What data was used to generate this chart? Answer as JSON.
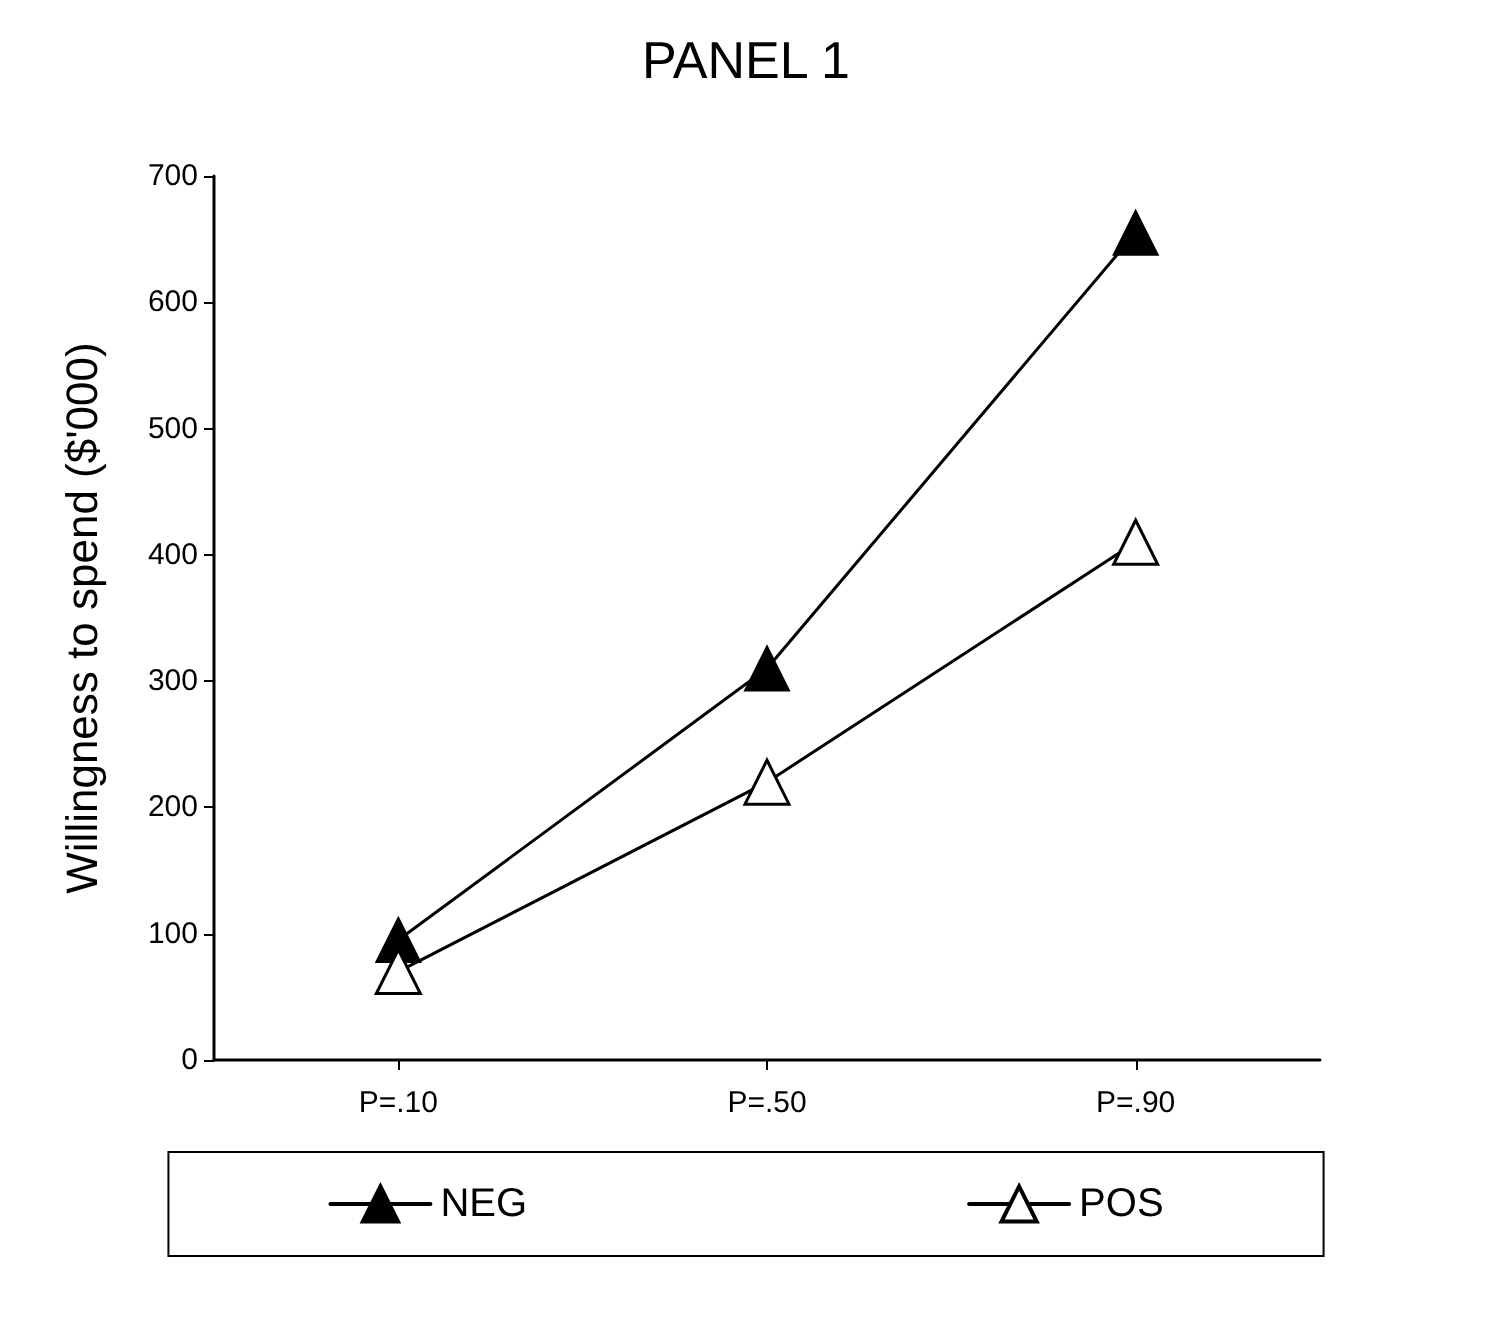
{
  "chart_data": {
    "type": "line",
    "title": "PANEL 1",
    "ylabel": "Willingness to spend ($'000)",
    "categories": [
      "P=.10",
      "P=.50",
      "P=.90"
    ],
    "series": [
      {
        "name": "NEG",
        "color": "#000000",
        "values": [
          95,
          310,
          655
        ]
      },
      {
        "name": "POS",
        "color": "#000000",
        "values": [
          70,
          220,
          410
        ]
      }
    ],
    "ylim": [
      0,
      700
    ],
    "yticks": [
      0,
      100,
      200,
      300,
      400,
      500,
      600,
      700
    ],
    "grid": false,
    "legend": "bottom",
    "marker": "triangle",
    "line_style": "solid"
  }
}
